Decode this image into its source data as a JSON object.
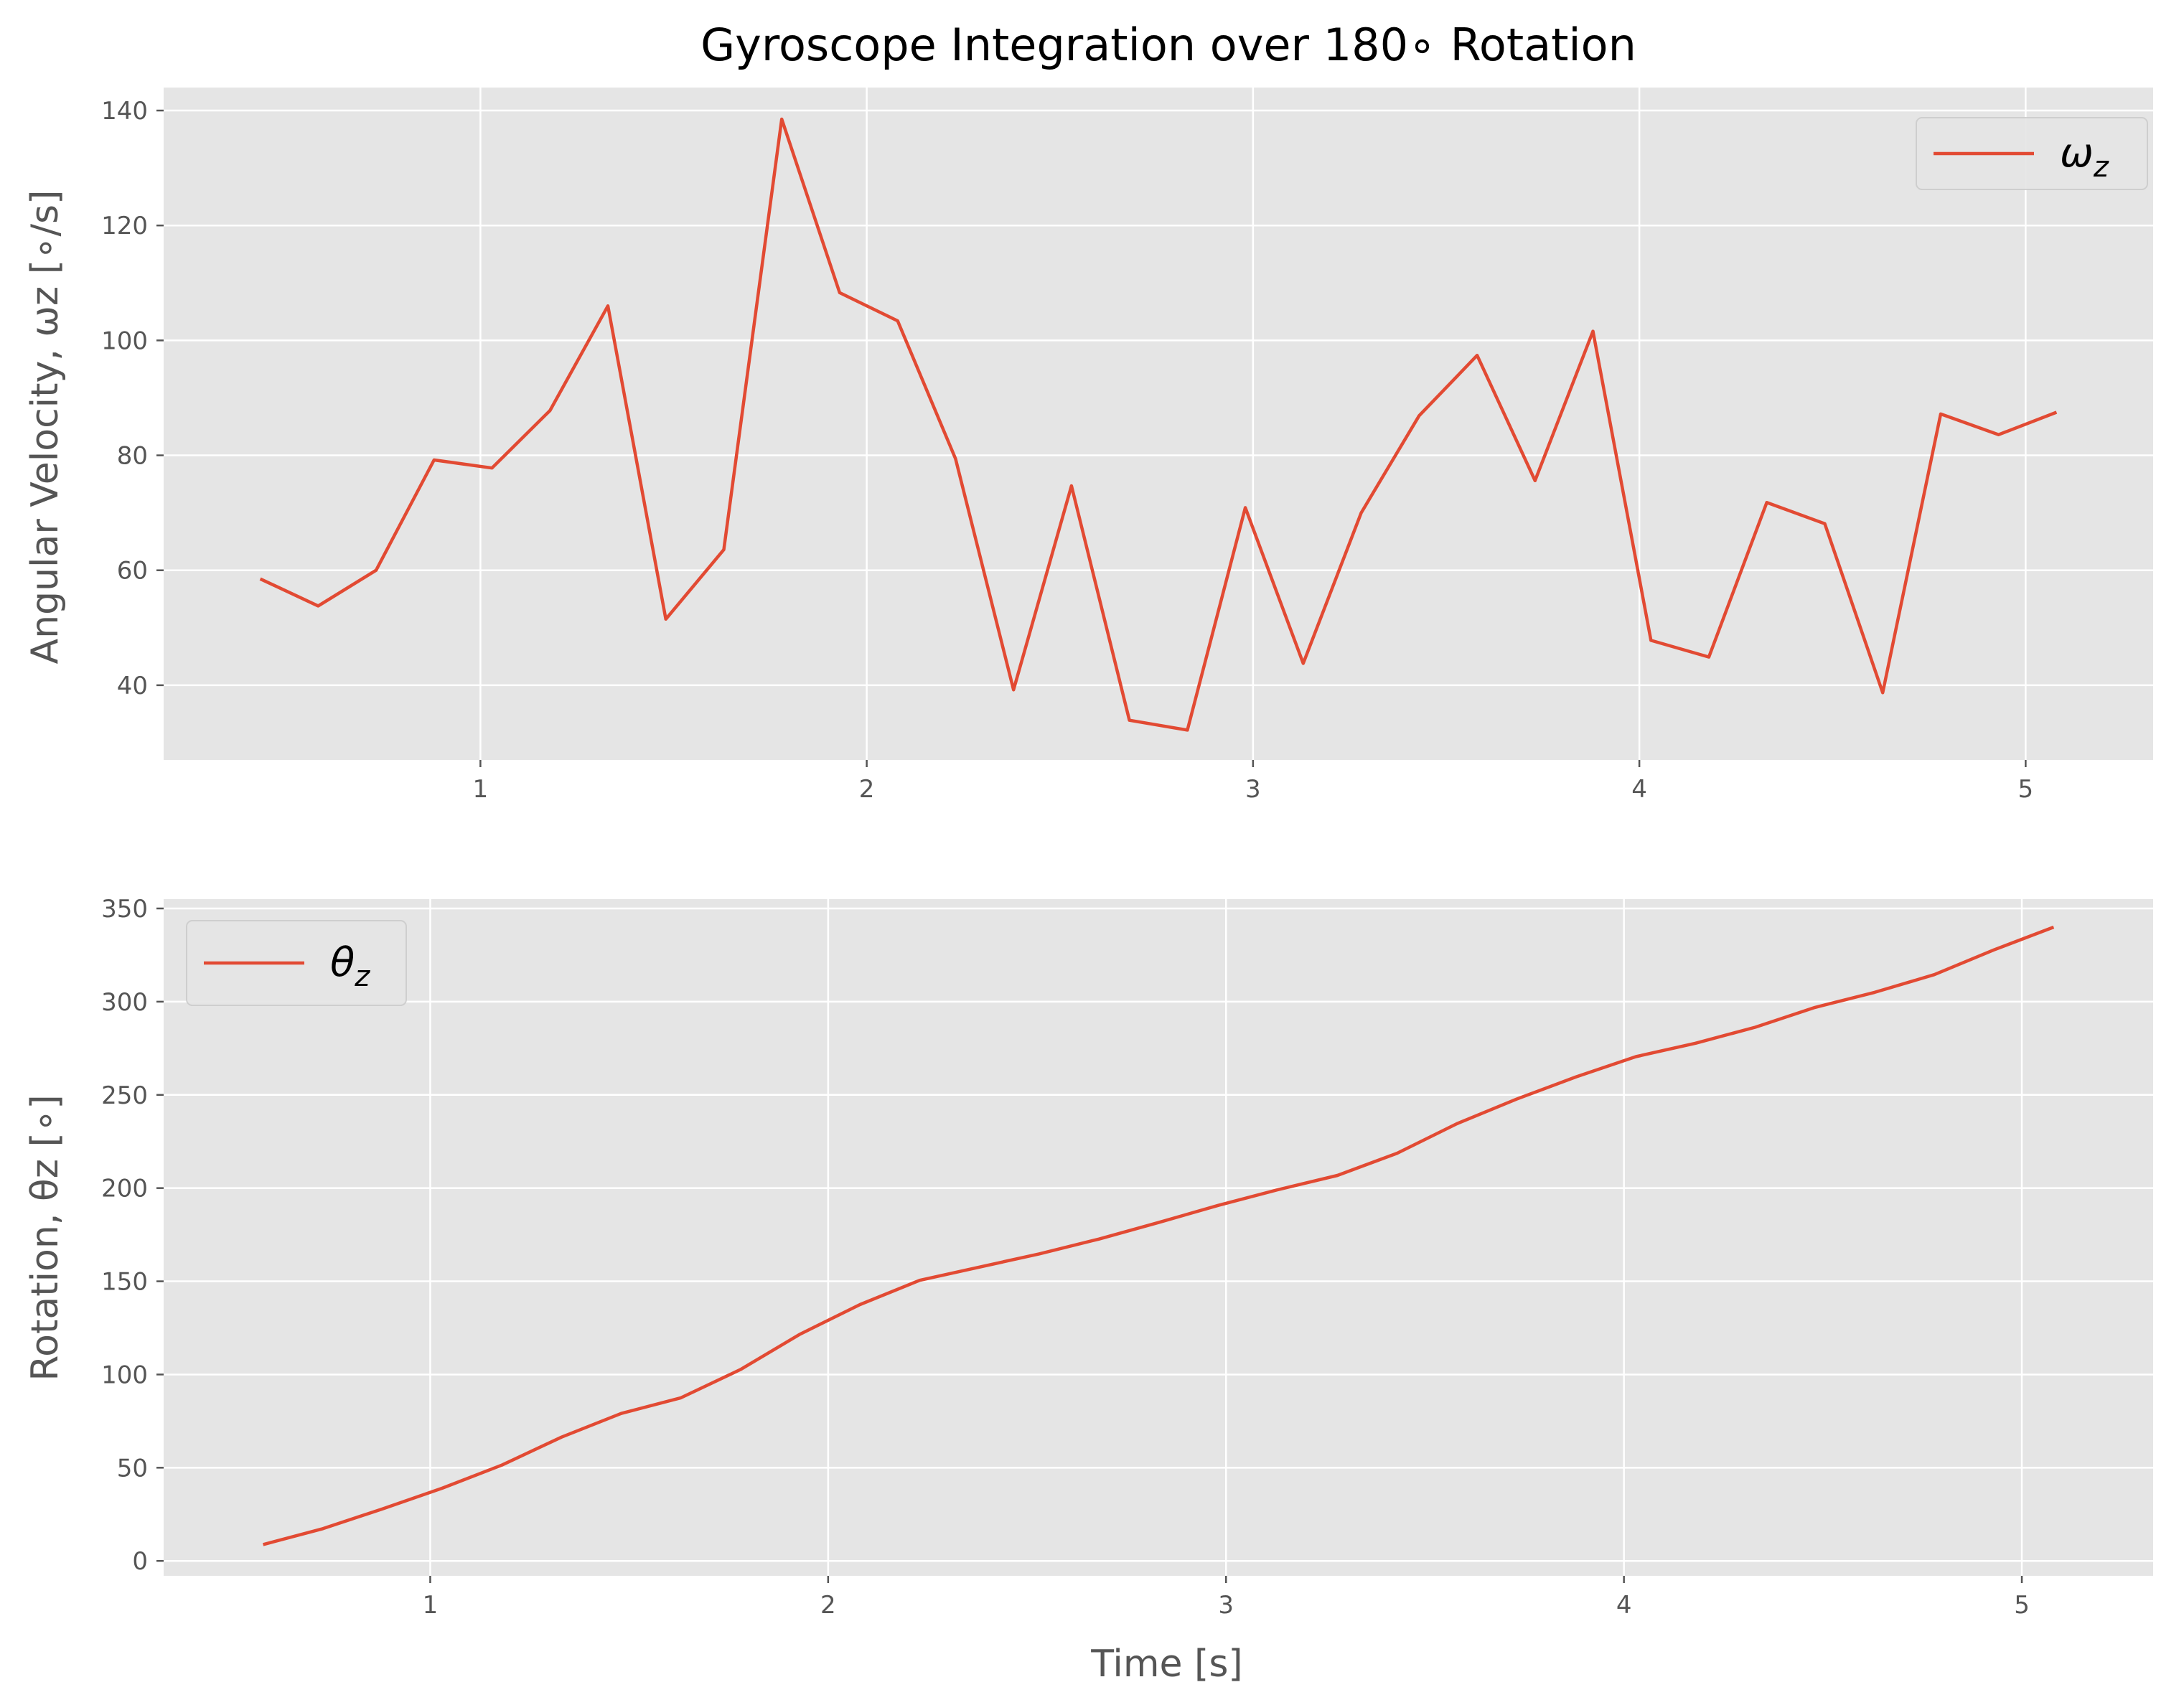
{
  "chart_data": [
    {
      "type": "line",
      "title": "Gyroscope Integration over 180∘ Rotation",
      "xlabel": "",
      "ylabel": "Angular Velocity, ωz [∘/s]",
      "xlim": [
        0.18,
        5.33
      ],
      "ylim": [
        27,
        144
      ],
      "xticks": [
        1,
        2,
        3,
        4,
        5
      ],
      "yticks": [
        40,
        60,
        80,
        100,
        120,
        140
      ],
      "grid": true,
      "legend_position": "upper right",
      "background": "#e5e5e5",
      "series": [
        {
          "name": "ωz",
          "name_main": "ω",
          "name_sub": "z",
          "color": "#e24a33",
          "x": [
            0.43,
            0.58,
            0.73,
            0.88,
            1.03,
            1.18,
            1.33,
            1.48,
            1.63,
            1.78,
            1.93,
            2.08,
            2.23,
            2.38,
            2.53,
            2.68,
            2.83,
            2.98,
            3.13,
            3.28,
            3.43,
            3.58,
            3.73,
            3.88,
            4.03,
            4.18,
            4.33,
            4.48,
            4.63,
            4.78,
            4.93,
            5.08
          ],
          "y": [
            58.5,
            53.8,
            60.0,
            79.2,
            77.8,
            87.8,
            106.0,
            51.5,
            63.6,
            138.5,
            108.3,
            103.4,
            79.4,
            39.2,
            74.7,
            33.9,
            32.2,
            70.9,
            43.8,
            70.0,
            86.9,
            97.4,
            75.6,
            101.6,
            47.8,
            44.9,
            71.8,
            68.1,
            38.7,
            87.2,
            83.6,
            87.5
          ]
        }
      ]
    },
    {
      "type": "line",
      "title": "",
      "xlabel": "Time [s]",
      "ylabel": "Rotation, θz [∘]",
      "xlim": [
        0.33,
        5.33
      ],
      "ylim": [
        -8,
        355
      ],
      "xticks": [
        1,
        2,
        3,
        4,
        5
      ],
      "yticks": [
        0,
        50,
        100,
        150,
        200,
        250,
        300,
        350
      ],
      "grid": true,
      "legend_position": "upper left",
      "background": "#e5e5e5",
      "series": [
        {
          "name": "θz",
          "name_main": "θ",
          "name_sub": "z",
          "color": "#e24a33",
          "x": [
            0.58,
            0.73,
            0.88,
            1.03,
            1.18,
            1.33,
            1.48,
            1.63,
            1.78,
            1.93,
            2.08,
            2.23,
            2.38,
            2.53,
            2.68,
            2.83,
            2.98,
            3.13,
            3.28,
            3.43,
            3.58,
            3.73,
            3.88,
            4.03,
            4.18,
            4.33,
            4.48,
            4.63,
            4.78,
            4.93,
            5.08
          ],
          "y": [
            8.8,
            17.3,
            27.9,
            39.0,
            51.4,
            66.4,
            79.1,
            87.5,
            102.7,
            121.7,
            137.5,
            150.5,
            157.6,
            164.7,
            172.6,
            181.5,
            190.7,
            199.1,
            206.8,
            218.7,
            234.5,
            247.7,
            259.7,
            270.5,
            277.7,
            286.3,
            296.9,
            305.0,
            314.5,
            327.8,
            340.0
          ]
        }
      ]
    }
  ]
}
